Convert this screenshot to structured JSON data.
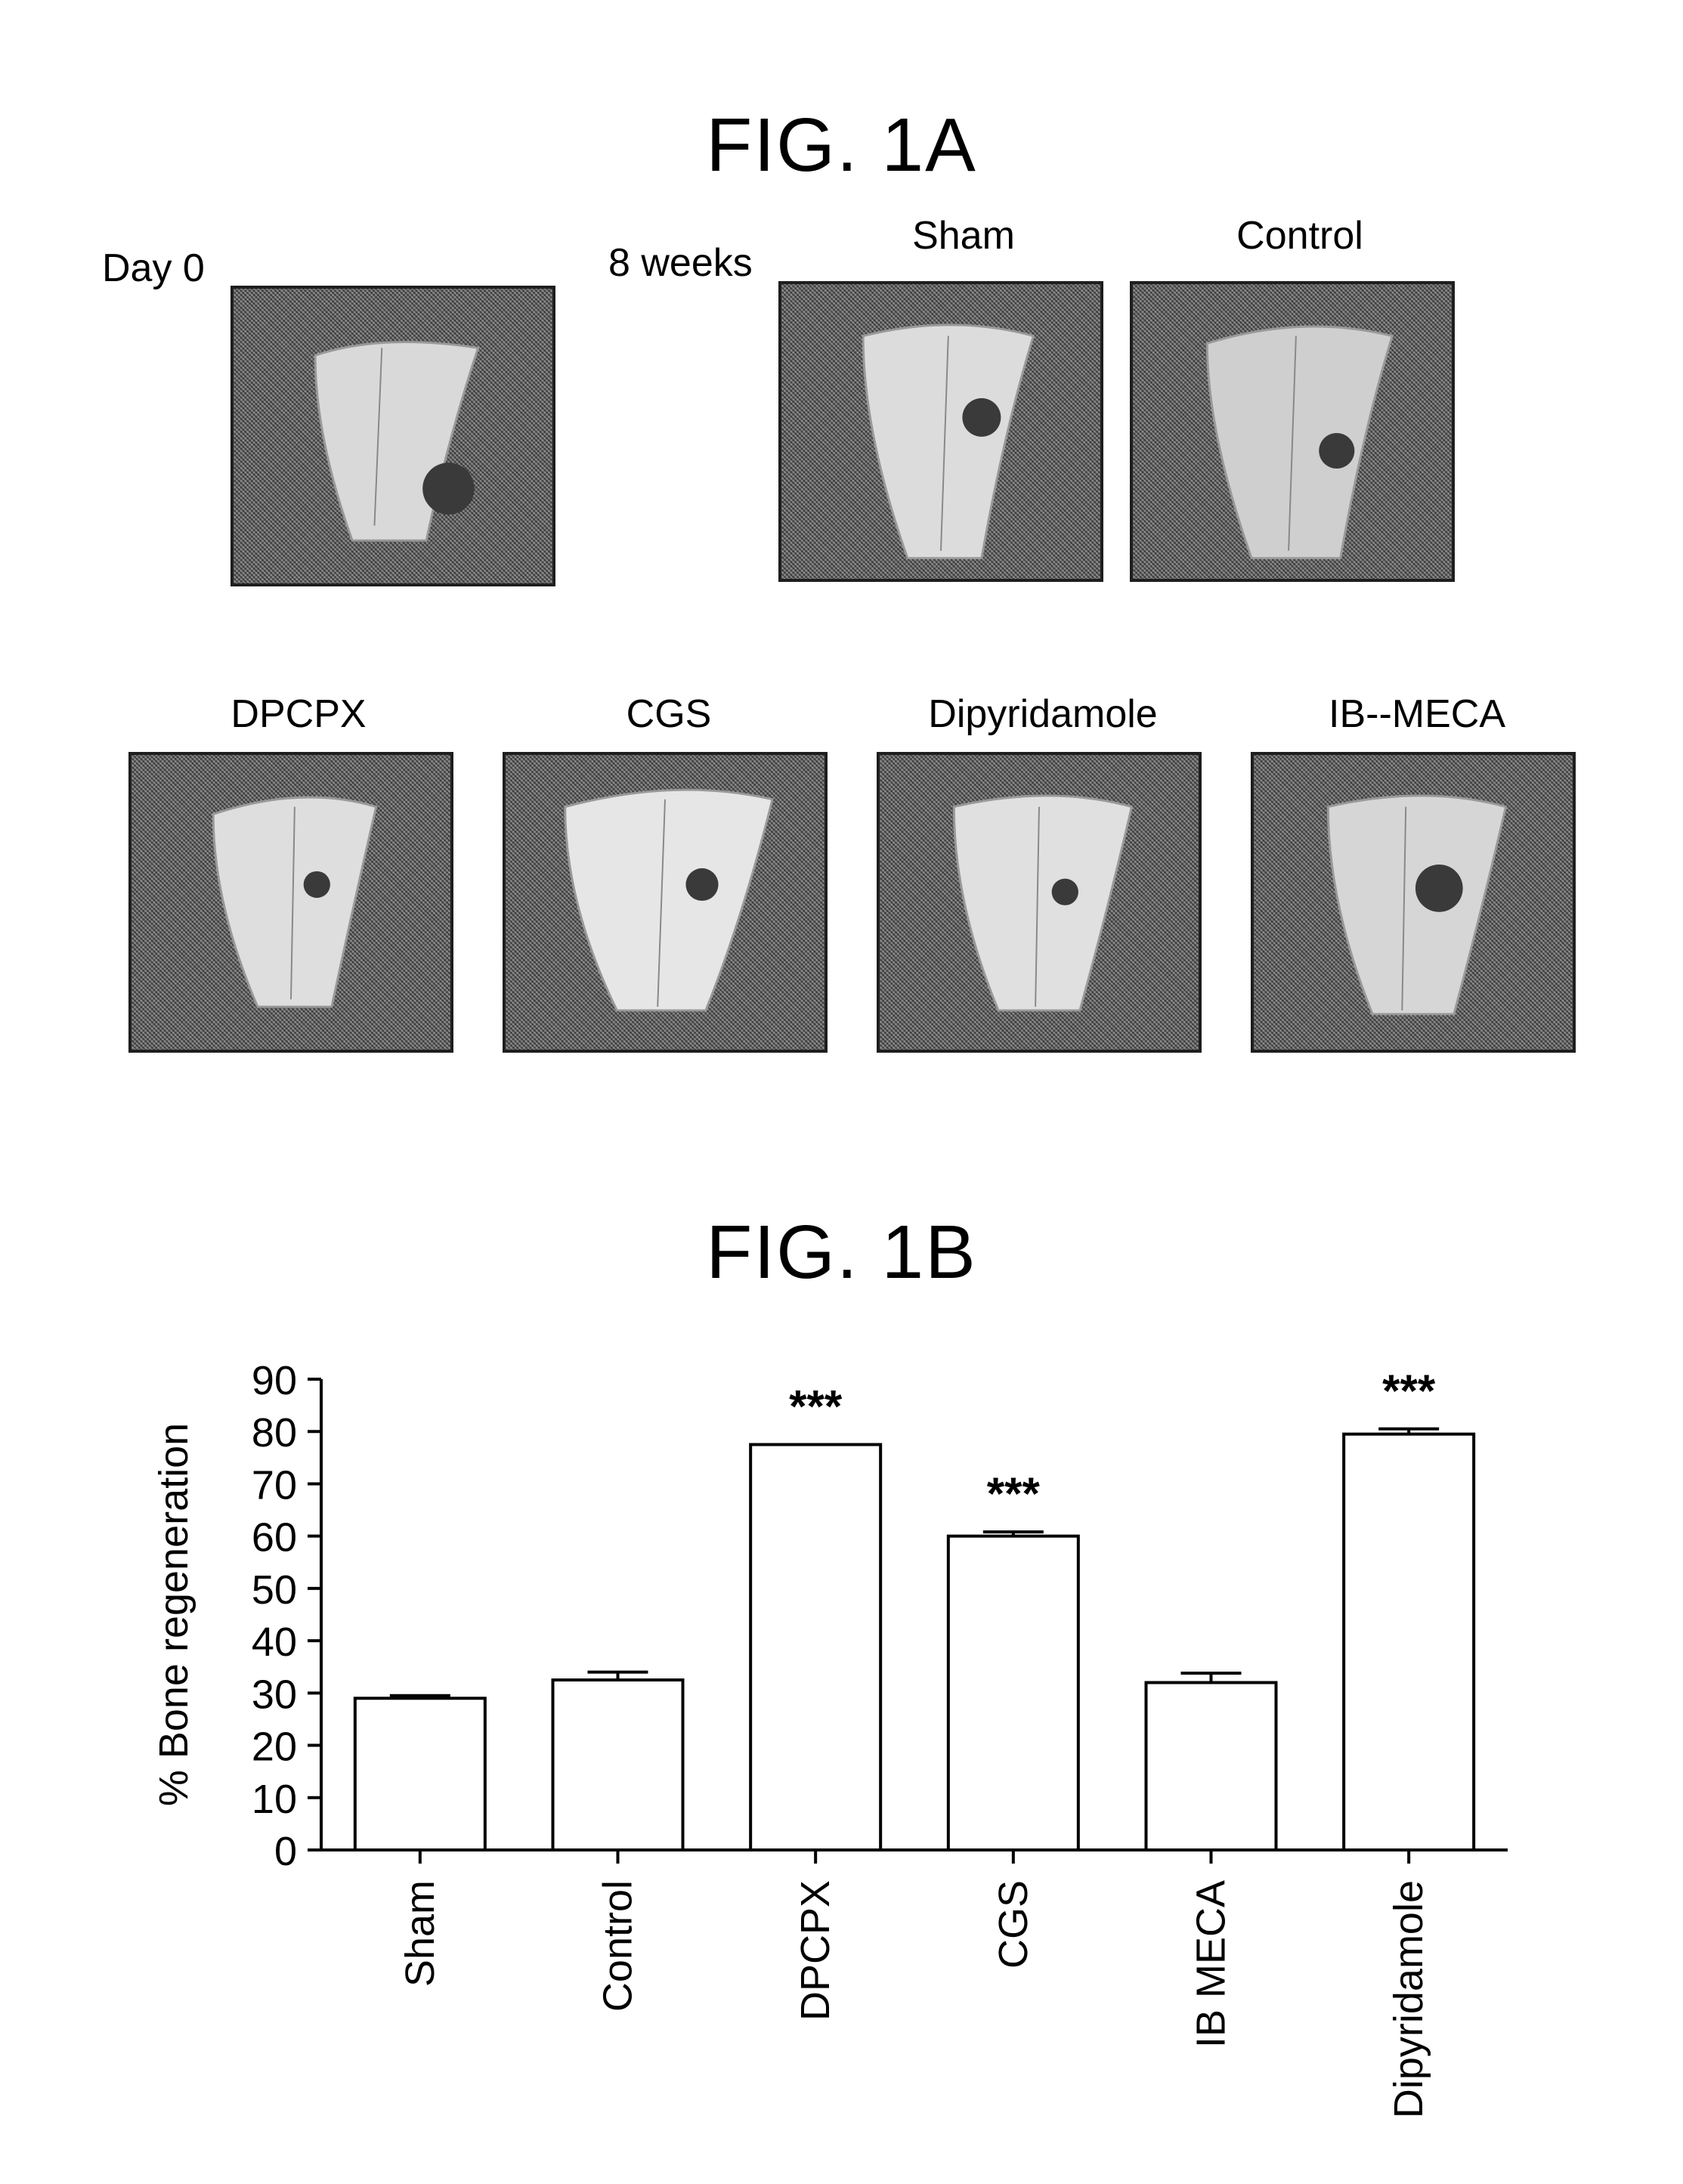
{
  "fig1a": {
    "title": "FIG. 1A",
    "day0_label": "Day 0",
    "weeks_label": "8 weeks",
    "panels": [
      "Sham",
      "Control",
      "DPCPX",
      "CGS",
      "Dipyridamole",
      "IB--MECA"
    ]
  },
  "fig1b": {
    "title": "FIG. 1B"
  },
  "chart_data": {
    "type": "bar",
    "title": "",
    "xlabel": "",
    "ylabel": "% Bone regeneration",
    "ylim": [
      0,
      90
    ],
    "yticks": [
      0,
      10,
      20,
      30,
      40,
      50,
      60,
      70,
      80,
      90
    ],
    "categories": [
      "Sham",
      "Control",
      "DPCPX",
      "CGS",
      "IB MECA",
      "Dipyridamole"
    ],
    "values": [
      29,
      32.5,
      77.5,
      60,
      32,
      79.5
    ],
    "errors": [
      0.5,
      1.5,
      0,
      0.8,
      1.8,
      1
    ],
    "annotations": [
      "",
      "",
      "***",
      "***",
      "",
      "***"
    ],
    "grid": false,
    "bar_color": "#ffffff",
    "edge_color": "#000000"
  }
}
